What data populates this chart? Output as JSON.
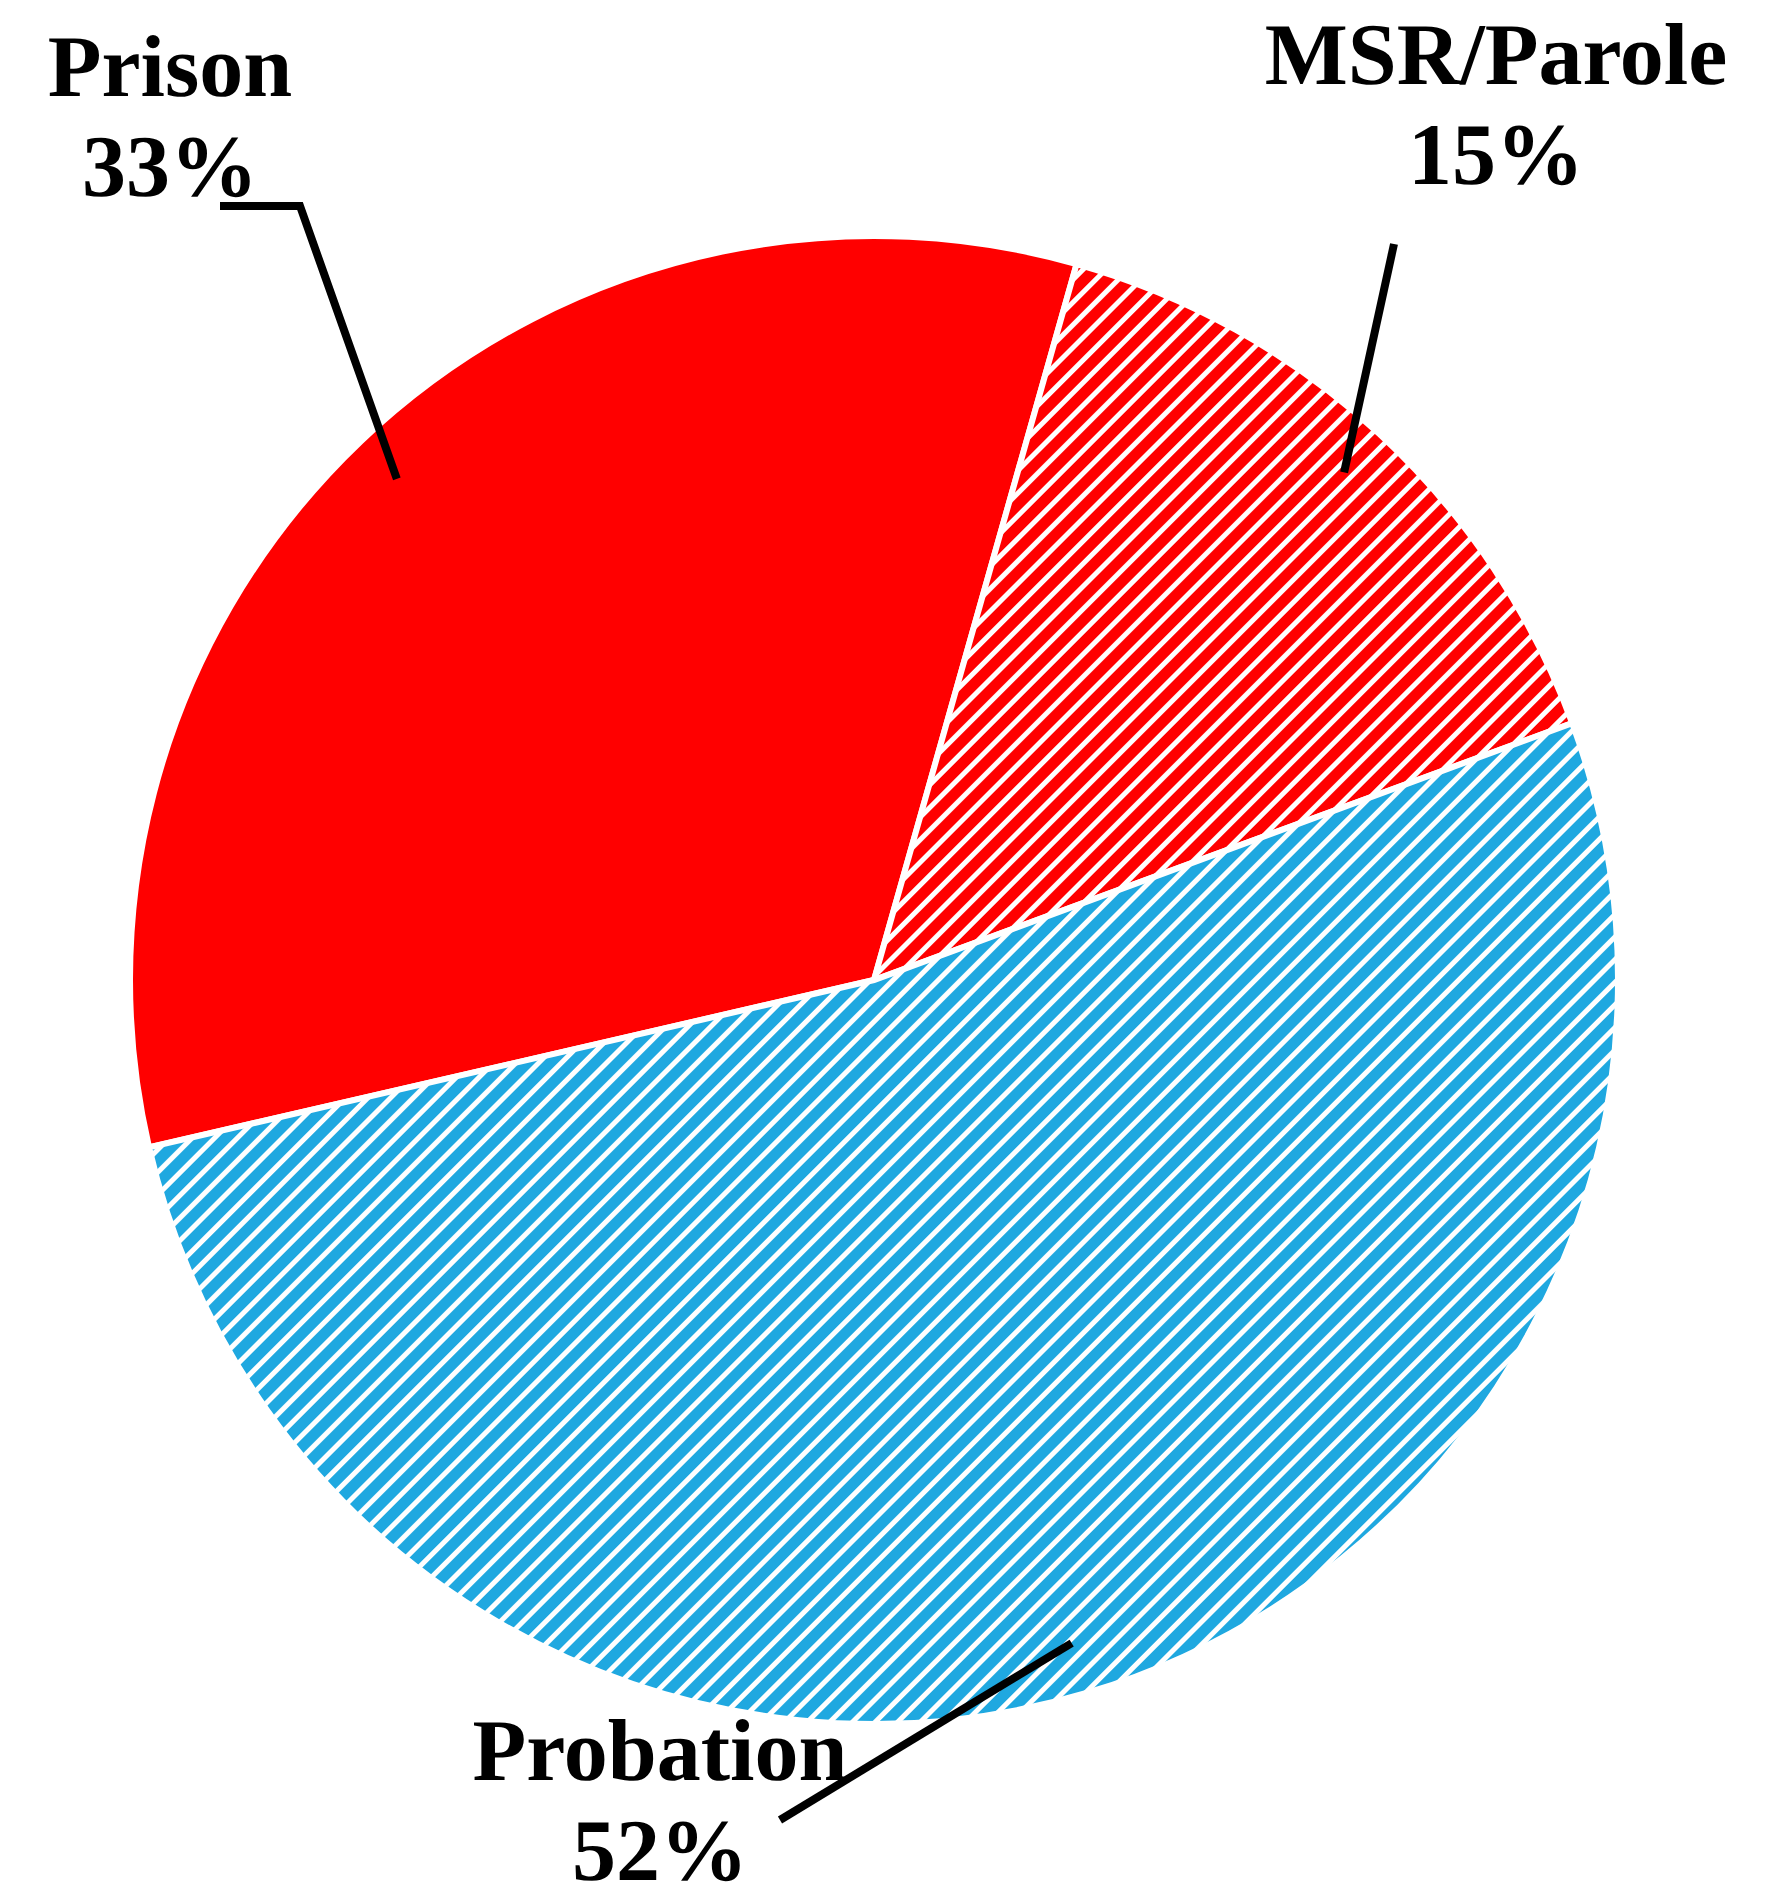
{
  "chart_data": {
    "type": "pie",
    "categories": [
      "Prison",
      "MSR/Parole",
      "Probation"
    ],
    "values": [
      33,
      15,
      52
    ],
    "colors": [
      "#ff0000",
      "#ff0000",
      "#1fa8e0"
    ],
    "value_labels": [
      "33%",
      "15%",
      "52%"
    ]
  }
}
